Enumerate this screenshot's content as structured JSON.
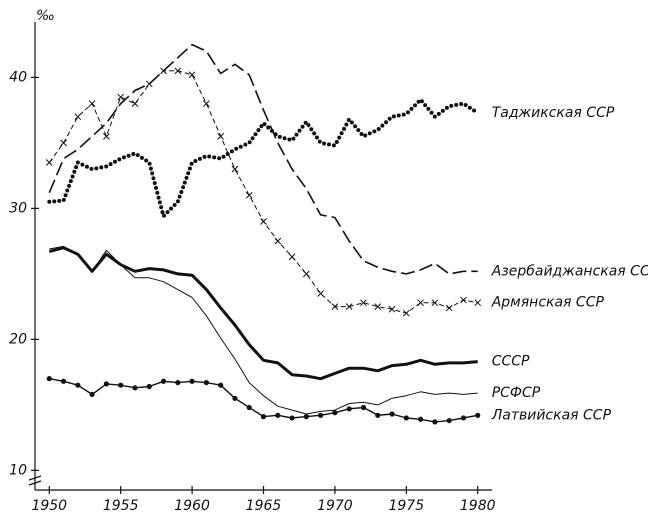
{
  "chart_data": {
    "type": "line",
    "y_unit": "‰",
    "x": [
      1950,
      1951,
      1952,
      1953,
      1954,
      1955,
      1956,
      1957,
      1958,
      1959,
      1960,
      1961,
      1962,
      1963,
      1964,
      1965,
      1966,
      1967,
      1968,
      1969,
      1970,
      1971,
      1972,
      1973,
      1974,
      1975,
      1976,
      1977,
      1978,
      1979,
      1980
    ],
    "xlim": [
      1949,
      1981
    ],
    "xticks": [
      1950,
      1955,
      1960,
      1965,
      1970,
      1975,
      1980
    ],
    "ylim": [
      8.5,
      44
    ],
    "yticks": [
      10,
      20,
      30,
      40
    ],
    "series": [
      {
        "name": "Таджикская ССР",
        "color": "#111111",
        "line_style": "dotted",
        "line_width": 4,
        "marker": null,
        "values": [
          30.5,
          30.6,
          33.5,
          33,
          33.2,
          33.8,
          34.2,
          33.5,
          29.4,
          30.5,
          33.5,
          34,
          33.8,
          34.5,
          35,
          36.5,
          35.5,
          35.2,
          36.6,
          35,
          34.8,
          36.8,
          35.5,
          36,
          37,
          37.2,
          38.3,
          37,
          37.8,
          38,
          37.3
        ]
      },
      {
        "name": "Азербайджанская ССР",
        "color": "#111111",
        "line_style": "dashed",
        "line_width": 1.6,
        "marker": null,
        "values": [
          31.2,
          33.8,
          34.5,
          35.5,
          36.5,
          38,
          39,
          39.5,
          40.5,
          41.5,
          42.5,
          42,
          40.3,
          41,
          40.2,
          37.5,
          35,
          33,
          31.5,
          29.5,
          29.3,
          27.5,
          26,
          25.5,
          25.2,
          25,
          25.3,
          25.8,
          25,
          25.2,
          25.2
        ]
      },
      {
        "name": "Армянская ССР",
        "color": "#111111",
        "line_style": "dashed-thin",
        "line_width": 1,
        "marker": "x",
        "values": [
          33.5,
          35,
          37,
          38,
          35.5,
          38.5,
          38,
          39.5,
          40.5,
          40.5,
          40.2,
          38,
          35.5,
          33,
          31,
          29,
          27.5,
          26.3,
          25,
          23.5,
          22.5,
          22.5,
          22.8,
          22.5,
          22.3,
          22,
          22.8,
          22.8,
          22.4,
          23,
          22.8
        ]
      },
      {
        "name": "СССР",
        "color": "#111111",
        "line_style": "solid",
        "line_width": 3,
        "marker": null,
        "values": [
          26.7,
          27,
          26.5,
          25.2,
          26.5,
          25.7,
          25.2,
          25.4,
          25.3,
          25,
          24.9,
          23.8,
          22.4,
          21.1,
          19.6,
          18.4,
          18.2,
          17.3,
          17.2,
          17,
          17.4,
          17.8,
          17.8,
          17.6,
          18,
          18.1,
          18.4,
          18.1,
          18.2,
          18.2,
          18.3
        ]
      },
      {
        "name": "РСФСР",
        "color": "#111111",
        "line_style": "solid",
        "line_width": 1,
        "marker": null,
        "values": [
          26.9,
          27.1,
          26.4,
          25.2,
          26.8,
          25.7,
          24.7,
          24.7,
          24.4,
          23.8,
          23.2,
          21.8,
          20.1,
          18.5,
          16.7,
          15.7,
          14.9,
          14.6,
          14.3,
          14.5,
          14.6,
          15.1,
          15.2,
          15,
          15.5,
          15.7,
          16,
          15.8,
          15.9,
          15.8,
          15.9
        ]
      },
      {
        "name": "Латвийская ССР",
        "color": "#111111",
        "line_style": "solid",
        "line_width": 1.4,
        "marker": "dot",
        "values": [
          17,
          16.8,
          16.5,
          15.8,
          16.6,
          16.5,
          16.3,
          16.4,
          16.8,
          16.7,
          16.8,
          16.7,
          16.5,
          15.5,
          14.8,
          14.1,
          14.2,
          14,
          14.1,
          14.2,
          14.4,
          14.7,
          14.8,
          14.2,
          14.3,
          14,
          13.9,
          13.7,
          13.8,
          14,
          14.2
        ]
      }
    ]
  }
}
